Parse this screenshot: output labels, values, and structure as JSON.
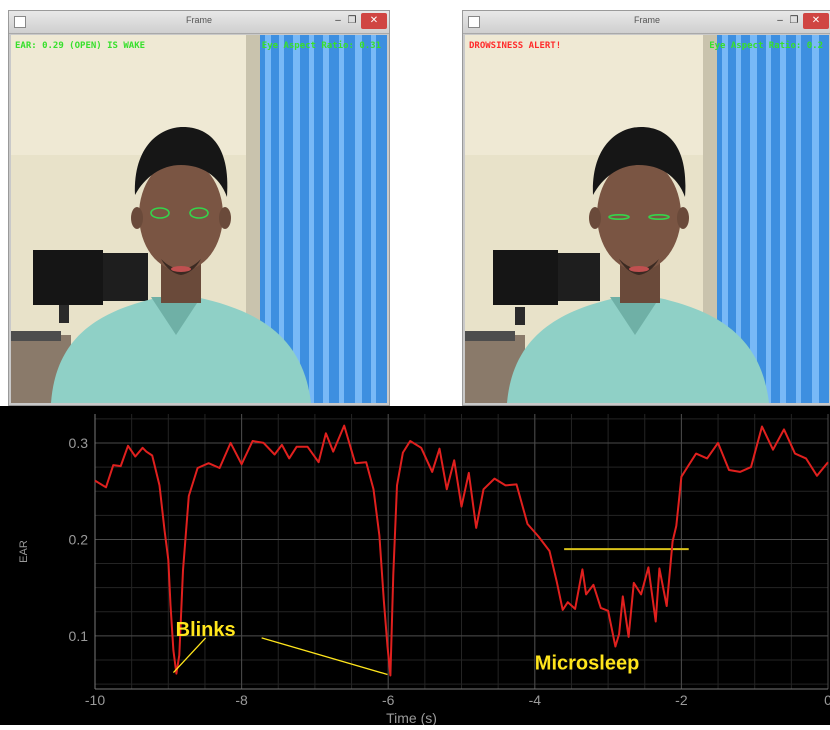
{
  "windows": [
    {
      "title": "Frame",
      "overlay_left": "EAR: 0.29 (OPEN) IS WAKE",
      "overlay_left_color": "#37e02c",
      "overlay_right": "Eye Aspect Ratio: 0.31",
      "eye_color": "#35d44b"
    },
    {
      "title": "Frame",
      "overlay_left": "DROWSINESS ALERT!",
      "overlay_left_color": "#ff2a2a",
      "overlay_right": "Eye Aspect Ratio: 0.2",
      "eye_color": "#35d44b"
    }
  ],
  "window_buttons": {
    "minimize": "–",
    "maximize": "❐",
    "close": "✕"
  },
  "chart_data": {
    "type": "line",
    "xlabel": "Time (s)",
    "ylabel": "EAR",
    "xlim": [
      -10,
      0
    ],
    "ylim": [
      0.045,
      0.33
    ],
    "xticks": [
      -10,
      -8,
      -6,
      -4,
      -2,
      0
    ],
    "yticks": [
      0.1,
      0.2,
      0.3
    ],
    "grid": true,
    "series_color": "#e0201e",
    "threshold": {
      "x_start": -3.6,
      "x_end": -1.9,
      "value": 0.19,
      "color": "#d9c21a"
    },
    "annotations": [
      {
        "text": "Blinks",
        "x": -8.9,
        "y": 0.1
      },
      {
        "text": "Microsleep",
        "x": -4.0,
        "y": 0.065
      }
    ],
    "annotation_color": "#ffe51c",
    "x": [
      -10.0,
      -9.85,
      -9.75,
      -9.65,
      -9.55,
      -9.45,
      -9.35,
      -9.3,
      -9.22,
      -9.12,
      -9.05,
      -9.0,
      -8.97,
      -8.93,
      -8.89,
      -8.85,
      -8.8,
      -8.72,
      -8.6,
      -8.45,
      -8.3,
      -8.15,
      -8.0,
      -7.85,
      -7.7,
      -7.55,
      -7.45,
      -7.35,
      -7.25,
      -7.1,
      -6.95,
      -6.85,
      -6.75,
      -6.6,
      -6.45,
      -6.3,
      -6.2,
      -6.12,
      -6.06,
      -6.01,
      -5.97,
      -5.93,
      -5.88,
      -5.8,
      -5.7,
      -5.55,
      -5.4,
      -5.3,
      -5.2,
      -5.1,
      -5.0,
      -4.9,
      -4.8,
      -4.7,
      -4.55,
      -4.4,
      -4.25,
      -4.1,
      -3.95,
      -3.8,
      -3.7,
      -3.62,
      -3.55,
      -3.45,
      -3.35,
      -3.3,
      -3.2,
      -3.1,
      -3.0,
      -2.9,
      -2.85,
      -2.8,
      -2.72,
      -2.65,
      -2.55,
      -2.45,
      -2.35,
      -2.3,
      -2.2,
      -2.12,
      -2.07,
      -2.0,
      -1.9,
      -1.8,
      -1.65,
      -1.5,
      -1.35,
      -1.2,
      -1.05,
      -0.9,
      -0.75,
      -0.6,
      -0.45,
      -0.3,
      -0.15,
      0.0
    ],
    "y": [
      0.261,
      0.254,
      0.277,
      0.276,
      0.297,
      0.286,
      0.295,
      0.291,
      0.287,
      0.256,
      0.209,
      0.179,
      0.132,
      0.085,
      0.061,
      0.08,
      0.168,
      0.245,
      0.274,
      0.279,
      0.274,
      0.3,
      0.278,
      0.302,
      0.3,
      0.288,
      0.298,
      0.284,
      0.296,
      0.296,
      0.28,
      0.31,
      0.291,
      0.318,
      0.279,
      0.28,
      0.252,
      0.204,
      0.137,
      0.089,
      0.059,
      0.164,
      0.256,
      0.29,
      0.302,
      0.295,
      0.27,
      0.294,
      0.252,
      0.282,
      0.234,
      0.269,
      0.212,
      0.252,
      0.263,
      0.256,
      0.257,
      0.216,
      0.203,
      0.188,
      0.156,
      0.127,
      0.135,
      0.128,
      0.169,
      0.143,
      0.153,
      0.129,
      0.126,
      0.089,
      0.102,
      0.141,
      0.099,
      0.155,
      0.143,
      0.171,
      0.115,
      0.17,
      0.131,
      0.198,
      0.214,
      0.265,
      0.277,
      0.289,
      0.284,
      0.3,
      0.272,
      0.27,
      0.275,
      0.317,
      0.293,
      0.314,
      0.289,
      0.284,
      0.266,
      0.28
    ]
  }
}
